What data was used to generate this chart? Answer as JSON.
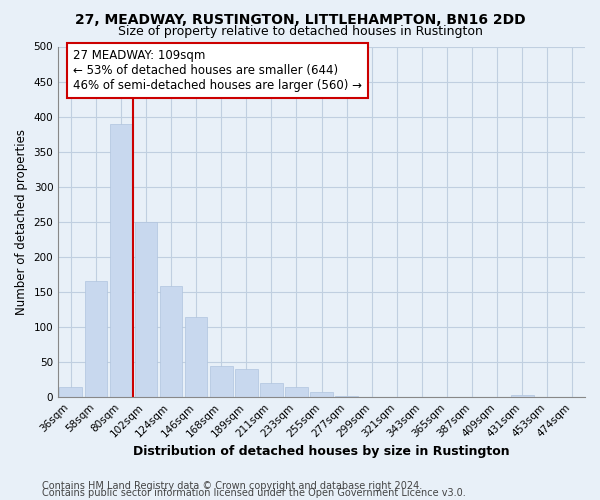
{
  "title": "27, MEADWAY, RUSTINGTON, LITTLEHAMPTON, BN16 2DD",
  "subtitle": "Size of property relative to detached houses in Rustington",
  "xlabel": "Distribution of detached houses by size in Rustington",
  "ylabel": "Number of detached properties",
  "bar_labels": [
    "36sqm",
    "58sqm",
    "80sqm",
    "102sqm",
    "124sqm",
    "146sqm",
    "168sqm",
    "189sqm",
    "211sqm",
    "233sqm",
    "255sqm",
    "277sqm",
    "299sqm",
    "321sqm",
    "343sqm",
    "365sqm",
    "387sqm",
    "409sqm",
    "431sqm",
    "453sqm",
    "474sqm"
  ],
  "bar_values": [
    14,
    165,
    390,
    250,
    158,
    115,
    45,
    40,
    20,
    15,
    7,
    2,
    1,
    0,
    0,
    0,
    0,
    0,
    3,
    0,
    1
  ],
  "bar_color": "#c8d8ee",
  "bar_edge_color": "#b0c4de",
  "vline_color": "#cc0000",
  "annotation_text": "27 MEADWAY: 109sqm\n← 53% of detached houses are smaller (644)\n46% of semi-detached houses are larger (560) →",
  "annotation_box_color": "white",
  "annotation_box_edge": "#cc0000",
  "ylim": [
    0,
    500
  ],
  "yticks": [
    0,
    50,
    100,
    150,
    200,
    250,
    300,
    350,
    400,
    450,
    500
  ],
  "footnote1": "Contains HM Land Registry data © Crown copyright and database right 2024.",
  "footnote2": "Contains public sector information licensed under the Open Government Licence v3.0.",
  "bg_color": "#e8f0f8",
  "plot_bg_color": "#e8f0f8",
  "grid_color": "#c0cfe0",
  "title_fontsize": 10,
  "subtitle_fontsize": 9,
  "xlabel_fontsize": 9,
  "ylabel_fontsize": 8.5,
  "tick_fontsize": 7.5,
  "footnote_fontsize": 7,
  "annotation_fontsize": 8.5
}
